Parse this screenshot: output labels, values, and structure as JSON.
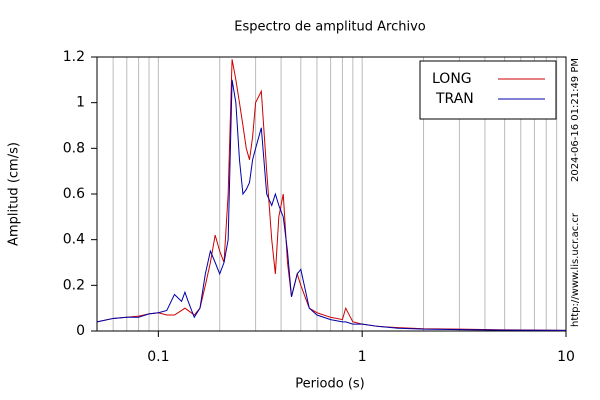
{
  "chart_data": {
    "type": "line",
    "title": "Espectro de amplitud Archivo",
    "x_label": "Periodo (s)",
    "y_label": "Amplitud (cm/s)",
    "annotations": [
      "2024-06-16 01:21:49 PM",
      "http://www.lis.ucr.ac.cr"
    ],
    "x": [
      0.05,
      0.06,
      0.07,
      0.08,
      0.09,
      0.1,
      0.11,
      0.12,
      0.13,
      0.135,
      0.14,
      0.15,
      0.16,
      0.17,
      0.18,
      0.19,
      0.2,
      0.21,
      0.22,
      0.23,
      0.24,
      0.25,
      0.26,
      0.27,
      0.28,
      0.29,
      0.3,
      0.32,
      0.34,
      0.36,
      0.375,
      0.39,
      0.41,
      0.43,
      0.45,
      0.48,
      0.5,
      0.55,
      0.6,
      0.7,
      0.8,
      0.83,
      0.9,
      1,
      1.2,
      1.5,
      2,
      3,
      5,
      10
    ],
    "series": [
      {
        "name": "LONG",
        "color": "#cc0000",
        "values": [
          0.04,
          0.055,
          0.06,
          0.065,
          0.075,
          0.08,
          0.07,
          0.07,
          0.09,
          0.1,
          0.09,
          0.07,
          0.1,
          0.2,
          0.3,
          0.42,
          0.35,
          0.3,
          0.6,
          1.19,
          1.1,
          1.0,
          0.9,
          0.8,
          0.75,
          0.85,
          1.0,
          1.05,
          0.7,
          0.4,
          0.25,
          0.5,
          0.6,
          0.3,
          0.15,
          0.25,
          0.2,
          0.1,
          0.08,
          0.06,
          0.05,
          0.1,
          0.04,
          0.03,
          0.02,
          0.015,
          0.01,
          0.008,
          0.005,
          0.003
        ]
      },
      {
        "name": "TRAN",
        "color": "#0000aa",
        "values": [
          0.04,
          0.055,
          0.06,
          0.06,
          0.075,
          0.08,
          0.09,
          0.16,
          0.13,
          0.17,
          0.13,
          0.06,
          0.1,
          0.25,
          0.35,
          0.3,
          0.25,
          0.3,
          0.4,
          1.1,
          1.0,
          0.75,
          0.6,
          0.62,
          0.65,
          0.75,
          0.8,
          0.89,
          0.6,
          0.55,
          0.6,
          0.55,
          0.5,
          0.35,
          0.15,
          0.25,
          0.27,
          0.1,
          0.07,
          0.05,
          0.04,
          0.04,
          0.03,
          0.03,
          0.02,
          0.012,
          0.008,
          0.006,
          0.004,
          0.003
        ]
      }
    ],
    "xlim": [
      0.05,
      10
    ],
    "xscale": "log",
    "xticks": [
      0.1,
      1,
      10
    ],
    "xminor_ticks": [
      0.06,
      0.07,
      0.08,
      0.09,
      0.2,
      0.3,
      0.4,
      0.5,
      0.6,
      0.7,
      0.8,
      0.9,
      2,
      3,
      4,
      5,
      6,
      7,
      8,
      9
    ],
    "ylim": [
      0,
      1.2
    ],
    "yticks": [
      0,
      0.2,
      0.4,
      0.6,
      0.8,
      1,
      1.2
    ],
    "grid": true,
    "legend": "upper right"
  }
}
